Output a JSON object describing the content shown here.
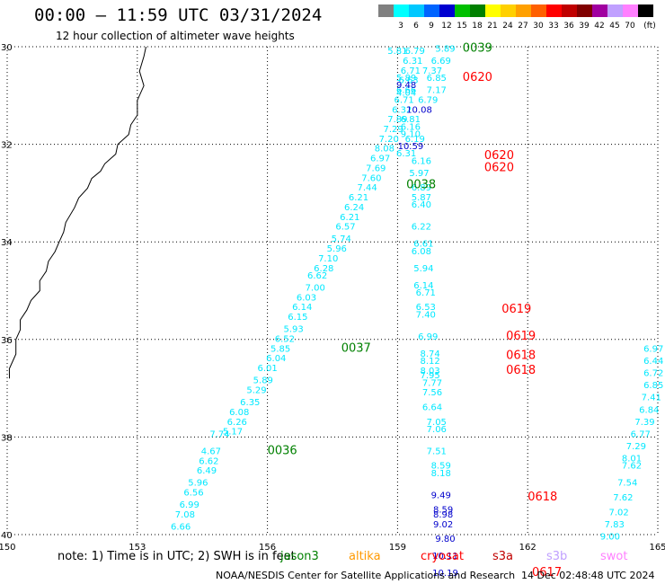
{
  "header": {
    "title": "00:00 – 11:59 UTC 03/31/2024",
    "subtitle": "12 hour collection of altimeter wave heights"
  },
  "legend": {
    "unit": "(ft)",
    "items": [
      {
        "label": "",
        "color": "#808080"
      },
      {
        "label": "3",
        "color": "#00ffff"
      },
      {
        "label": "6",
        "color": "#00c8ff"
      },
      {
        "label": "9",
        "color": "#0064ff"
      },
      {
        "label": "12",
        "color": "#0000d0"
      },
      {
        "label": "15",
        "color": "#00c000"
      },
      {
        "label": "18",
        "color": "#008000"
      },
      {
        "label": "21",
        "color": "#ffff00"
      },
      {
        "label": "24",
        "color": "#ffd000"
      },
      {
        "label": "27",
        "color": "#ffa000"
      },
      {
        "label": "30",
        "color": "#ff6000"
      },
      {
        "label": "33",
        "color": "#ff0000"
      },
      {
        "label": "36",
        "color": "#c00000"
      },
      {
        "label": "39",
        "color": "#800000"
      },
      {
        "label": "42",
        "color": "#a000a0"
      },
      {
        "label": "45",
        "color": "#c0a0ff"
      },
      {
        "label": "70",
        "color": "#ff80ff"
      },
      {
        "label": "",
        "color": "#000000"
      }
    ]
  },
  "axes": {
    "x_ticks": [
      "150",
      "153",
      "156",
      "159",
      "162",
      "165"
    ],
    "y_ticks": [
      "30",
      "32",
      "34",
      "36",
      "38",
      "40"
    ]
  },
  "map_view": {
    "lon_range": [
      150,
      165
    ],
    "lat_range": [
      30,
      40
    ],
    "projection": "equirectangular, latitude increasing downward"
  },
  "colors": {
    "cyan": "#00e8ff",
    "blue": "#0000cc",
    "red": "#ff0000",
    "green": "#008000"
  },
  "tracks": [
    {
      "label": "0036",
      "label_pos": {
        "lon": 156.0,
        "lat": 38.35
      },
      "label_color": "green",
      "points": [
        {
          "lon": 154.0,
          "lat": 39.9,
          "v": "6.66",
          "c": "cyan"
        },
        {
          "lon": 154.1,
          "lat": 39.65,
          "v": "7.08",
          "c": "cyan"
        },
        {
          "lon": 154.2,
          "lat": 39.45,
          "v": "6.99",
          "c": "cyan"
        },
        {
          "lon": 154.3,
          "lat": 39.2,
          "v": "6.56",
          "c": "cyan"
        },
        {
          "lon": 154.4,
          "lat": 39.0,
          "v": "5.96",
          "c": "cyan"
        },
        {
          "lon": 154.6,
          "lat": 38.75,
          "v": "6.49",
          "c": "cyan"
        },
        {
          "lon": 154.65,
          "lat": 38.55,
          "v": "6.62",
          "c": "cyan"
        },
        {
          "lon": 154.7,
          "lat": 38.35,
          "v": "4.67",
          "c": "cyan"
        },
        {
          "lon": 154.9,
          "lat": 38.0,
          "v": "7.74",
          "c": "cyan"
        },
        {
          "lon": 155.2,
          "lat": 37.95,
          "v": "5.17",
          "c": "cyan"
        },
        {
          "lon": 155.3,
          "lat": 37.75,
          "v": "6.26",
          "c": "cyan"
        },
        {
          "lon": 155.35,
          "lat": 37.55,
          "v": "6.08",
          "c": "cyan"
        },
        {
          "lon": 155.6,
          "lat": 37.35,
          "v": "6.35",
          "c": "cyan"
        },
        {
          "lon": 155.75,
          "lat": 37.1,
          "v": "5.29",
          "c": "cyan"
        },
        {
          "lon": 155.9,
          "lat": 36.9,
          "v": "5.89",
          "c": "cyan"
        },
        {
          "lon": 156.0,
          "lat": 36.65,
          "v": "6.01",
          "c": "cyan"
        },
        {
          "lon": 156.2,
          "lat": 36.45,
          "v": "6.04",
          "c": "cyan"
        },
        {
          "lon": 156.3,
          "lat": 36.25,
          "v": "5.85",
          "c": "cyan"
        },
        {
          "lon": 156.4,
          "lat": 36.05,
          "v": "6.52",
          "c": "cyan"
        },
        {
          "lon": 156.6,
          "lat": 35.85,
          "v": "5.93",
          "c": "cyan"
        },
        {
          "lon": 156.7,
          "lat": 35.6,
          "v": "6.15",
          "c": "cyan"
        },
        {
          "lon": 156.8,
          "lat": 35.4,
          "v": "6.14",
          "c": "cyan"
        },
        {
          "lon": 156.9,
          "lat": 35.2,
          "v": "6.03",
          "c": "cyan"
        },
        {
          "lon": 157.1,
          "lat": 35.0,
          "v": "7.00",
          "c": "cyan"
        },
        {
          "lon": 157.15,
          "lat": 34.75,
          "v": "6.62",
          "c": "cyan"
        },
        {
          "lon": 157.3,
          "lat": 34.6,
          "v": "6.28",
          "c": "cyan"
        },
        {
          "lon": 157.4,
          "lat": 34.4,
          "v": "7.10",
          "c": "cyan"
        },
        {
          "lon": 157.6,
          "lat": 34.2,
          "v": "5.96",
          "c": "cyan"
        },
        {
          "lon": 157.7,
          "lat": 34.0,
          "v": "5.74",
          "c": "cyan"
        },
        {
          "lon": 157.8,
          "lat": 33.75,
          "v": "6.57",
          "c": "cyan"
        },
        {
          "lon": 157.9,
          "lat": 33.55,
          "v": "6.21",
          "c": "cyan"
        },
        {
          "lon": 158.0,
          "lat": 33.35,
          "v": "6.24",
          "c": "cyan"
        },
        {
          "lon": 158.1,
          "lat": 33.15,
          "v": "6.21",
          "c": "cyan"
        },
        {
          "lon": 158.3,
          "lat": 32.95,
          "v": "7.44",
          "c": "cyan"
        },
        {
          "lon": 158.4,
          "lat": 32.75,
          "v": "7.60",
          "c": "cyan"
        },
        {
          "lon": 158.5,
          "lat": 32.55,
          "v": "7.69",
          "c": "cyan"
        },
        {
          "lon": 158.6,
          "lat": 32.35,
          "v": "6.97",
          "c": "cyan"
        },
        {
          "lon": 158.7,
          "lat": 32.15,
          "v": "8.08",
          "c": "cyan"
        },
        {
          "lon": 158.8,
          "lat": 31.95,
          "v": "7.20",
          "c": "cyan"
        },
        {
          "lon": 158.9,
          "lat": 31.75,
          "v": "7.29",
          "c": "cyan"
        },
        {
          "lon": 159.0,
          "lat": 31.55,
          "v": "7.89",
          "c": "cyan"
        },
        {
          "lon": 159.1,
          "lat": 31.35,
          "v": "6.32",
          "c": "cyan"
        },
        {
          "lon": 159.15,
          "lat": 31.15,
          "v": "6.71",
          "c": "cyan"
        },
        {
          "lon": 159.2,
          "lat": 30.95,
          "v": "6.66",
          "c": "cyan"
        },
        {
          "lon": 159.25,
          "lat": 30.75,
          "v": "6.63",
          "c": "cyan"
        },
        {
          "lon": 159.3,
          "lat": 30.55,
          "v": "6.71",
          "c": "cyan"
        },
        {
          "lon": 159.35,
          "lat": 30.35,
          "v": "6.31",
          "c": "cyan"
        },
        {
          "lon": 159.4,
          "lat": 30.15,
          "v": "6.79",
          "c": "cyan"
        }
      ]
    },
    {
      "label": "0037",
      "label_pos": {
        "lon": 157.7,
        "lat": 36.25
      },
      "label_color": "green",
      "points": []
    },
    {
      "label": "0038",
      "label_pos": {
        "lon": 159.2,
        "lat": 32.9
      },
      "label_color": "green",
      "points": [
        {
          "lon": 159.55,
          "lat": 32.4,
          "v": "6.16",
          "c": "cyan"
        },
        {
          "lon": 159.5,
          "lat": 32.65,
          "v": "5.97",
          "c": "cyan"
        },
        {
          "lon": 159.55,
          "lat": 32.95,
          "v": "6.89",
          "c": "cyan"
        },
        {
          "lon": 159.55,
          "lat": 33.15,
          "v": "5.87",
          "c": "cyan"
        },
        {
          "lon": 159.55,
          "lat": 33.3,
          "v": "6.40",
          "c": "cyan"
        }
      ]
    },
    {
      "label": "0039",
      "label_pos": {
        "lon": 160.5,
        "lat": 30.1
      },
      "label_color": "green",
      "points": [
        {
          "lon": 160.1,
          "lat": 30.1,
          "v": "5.89",
          "c": "cyan"
        },
        {
          "lon": 159.0,
          "lat": 30.15,
          "v": "5.81",
          "c": "cyan"
        },
        {
          "lon": 160.0,
          "lat": 30.35,
          "v": "6.69",
          "c": "cyan"
        },
        {
          "lon": 159.8,
          "lat": 30.55,
          "v": "7.37",
          "c": "cyan"
        },
        {
          "lon": 159.2,
          "lat": 30.7,
          "v": "5.89",
          "c": "cyan"
        },
        {
          "lon": 159.9,
          "lat": 30.7,
          "v": "6.85",
          "c": "cyan"
        },
        {
          "lon": 159.2,
          "lat": 30.85,
          "v": "9.48",
          "c": "blue"
        },
        {
          "lon": 159.9,
          "lat": 30.95,
          "v": "7.17",
          "c": "cyan"
        },
        {
          "lon": 159.2,
          "lat": 31.0,
          "v": "4.04",
          "c": "cyan"
        },
        {
          "lon": 159.7,
          "lat": 31.15,
          "v": "6.79",
          "c": "cyan"
        },
        {
          "lon": 159.5,
          "lat": 31.35,
          "v": "10.08",
          "c": "blue"
        },
        {
          "lon": 159.3,
          "lat": 31.55,
          "v": "6.81",
          "c": "cyan"
        },
        {
          "lon": 159.3,
          "lat": 31.7,
          "v": "6.16",
          "c": "cyan"
        },
        {
          "lon": 159.3,
          "lat": 31.85,
          "v": "9.10",
          "c": "cyan"
        },
        {
          "lon": 159.4,
          "lat": 31.95,
          "v": "6.19",
          "c": "cyan"
        },
        {
          "lon": 159.3,
          "lat": 32.1,
          "v": "10.59",
          "c": "blue"
        },
        {
          "lon": 159.2,
          "lat": 32.25,
          "v": "6.31",
          "c": "cyan"
        }
      ]
    },
    {
      "label": "0620",
      "label_pos": {
        "lon": 160.5,
        "lat": 30.7
      },
      "label_color": "red",
      "points": []
    },
    {
      "label": "0620",
      "label_pos": {
        "lon": 161.0,
        "lat": 32.3
      },
      "label_color": "red",
      "points": []
    },
    {
      "label": "0620",
      "label_pos": {
        "lon": 161.0,
        "lat": 32.55
      },
      "label_color": "red",
      "points": [
        {
          "lon": 159.55,
          "lat": 33.75,
          "v": "6.22",
          "c": "cyan"
        },
        {
          "lon": 159.6,
          "lat": 34.1,
          "v": "6.61",
          "c": "cyan"
        },
        {
          "lon": 159.55,
          "lat": 34.25,
          "v": "6.08",
          "c": "cyan"
        },
        {
          "lon": 159.6,
          "lat": 34.6,
          "v": "5.94",
          "c": "cyan"
        },
        {
          "lon": 159.6,
          "lat": 34.95,
          "v": "6.14",
          "c": "cyan"
        },
        {
          "lon": 159.65,
          "lat": 35.1,
          "v": "6.71",
          "c": "cyan"
        },
        {
          "lon": 159.65,
          "lat": 35.4,
          "v": "6.53",
          "c": "cyan"
        },
        {
          "lon": 159.65,
          "lat": 35.55,
          "v": "7.40",
          "c": "cyan"
        }
      ]
    },
    {
      "label": "0619",
      "label_pos": {
        "lon": 161.4,
        "lat": 35.45
      },
      "label_color": "red",
      "points": []
    },
    {
      "label": "0619",
      "label_pos": {
        "lon": 161.5,
        "lat": 36.0
      },
      "label_color": "red",
      "points": [
        {
          "lon": 159.7,
          "lat": 36.0,
          "v": "6.99",
          "c": "cyan"
        },
        {
          "lon": 159.75,
          "lat": 36.35,
          "v": "8.74",
          "c": "cyan"
        },
        {
          "lon": 159.75,
          "lat": 36.5,
          "v": "8.12",
          "c": "cyan"
        },
        {
          "lon": 159.75,
          "lat": 36.7,
          "v": "8.03",
          "c": "cyan"
        },
        {
          "lon": 159.75,
          "lat": 36.8,
          "v": "7.95",
          "c": "cyan"
        },
        {
          "lon": 159.8,
          "lat": 36.95,
          "v": "7.77",
          "c": "cyan"
        },
        {
          "lon": 159.8,
          "lat": 37.15,
          "v": "7.56",
          "c": "cyan"
        },
        {
          "lon": 159.8,
          "lat": 37.45,
          "v": "6.64",
          "c": "cyan"
        },
        {
          "lon": 159.9,
          "lat": 37.75,
          "v": "7.05",
          "c": "cyan"
        },
        {
          "lon": 159.9,
          "lat": 37.9,
          "v": "7.06",
          "c": "cyan"
        },
        {
          "lon": 159.9,
          "lat": 38.35,
          "v": "7.51",
          "c": "cyan"
        },
        {
          "lon": 160.0,
          "lat": 38.65,
          "v": "8.59",
          "c": "cyan"
        },
        {
          "lon": 160.0,
          "lat": 38.8,
          "v": "8.18",
          "c": "cyan"
        }
      ]
    },
    {
      "label": "0618",
      "label_pos": {
        "lon": 161.5,
        "lat": 36.4
      },
      "label_color": "red",
      "points": []
    },
    {
      "label": "0618",
      "label_pos": {
        "lon": 161.5,
        "lat": 36.7
      },
      "label_color": "red",
      "points": []
    },
    {
      "label": "0618",
      "label_pos": {
        "lon": 162.0,
        "lat": 39.3
      },
      "label_color": "red",
      "points": [
        {
          "lon": 160.0,
          "lat": 39.25,
          "v": "9.49",
          "c": "blue"
        },
        {
          "lon": 160.05,
          "lat": 39.55,
          "v": "8.59",
          "c": "blue"
        },
        {
          "lon": 160.05,
          "lat": 39.65,
          "v": "8.98",
          "c": "blue"
        },
        {
          "lon": 160.05,
          "lat": 39.85,
          "v": "9.02",
          "c": "blue"
        },
        {
          "lon": 160.1,
          "lat": 40.15,
          "v": "9.80",
          "c": "blue"
        },
        {
          "lon": 160.1,
          "lat": 40.5,
          "v": "10.11",
          "c": "blue"
        },
        {
          "lon": 160.1,
          "lat": 40.85,
          "v": "10.19",
          "c": "blue"
        }
      ]
    },
    {
      "label": "0617",
      "label_pos": {
        "lon": 162.1,
        "lat": 40.85
      },
      "label_color": "red",
      "points": [
        {
          "lon": 164.9,
          "lat": 36.25,
          "v": "6.97",
          "c": "cyan"
        },
        {
          "lon": 164.9,
          "lat": 36.5,
          "v": "6.44",
          "c": "cyan"
        },
        {
          "lon": 164.9,
          "lat": 36.75,
          "v": "6.72",
          "c": "cyan"
        },
        {
          "lon": 164.9,
          "lat": 37.0,
          "v": "6.85",
          "c": "cyan"
        },
        {
          "lon": 164.85,
          "lat": 37.25,
          "v": "7.41",
          "c": "cyan"
        },
        {
          "lon": 164.8,
          "lat": 37.5,
          "v": "6.84",
          "c": "cyan"
        },
        {
          "lon": 164.7,
          "lat": 37.75,
          "v": "7.39",
          "c": "cyan"
        },
        {
          "lon": 164.6,
          "lat": 38.0,
          "v": "6.77",
          "c": "cyan"
        },
        {
          "lon": 164.5,
          "lat": 38.25,
          "v": "7.29",
          "c": "cyan"
        },
        {
          "lon": 164.4,
          "lat": 38.5,
          "v": "8.01",
          "c": "cyan"
        },
        {
          "lon": 164.4,
          "lat": 38.65,
          "v": "7.62",
          "c": "cyan"
        },
        {
          "lon": 164.3,
          "lat": 39.0,
          "v": "7.54",
          "c": "cyan"
        },
        {
          "lon": 164.2,
          "lat": 39.3,
          "v": "7.62",
          "c": "cyan"
        },
        {
          "lon": 164.1,
          "lat": 39.6,
          "v": "7.02",
          "c": "cyan"
        },
        {
          "lon": 164.0,
          "lat": 39.85,
          "v": "7.83",
          "c": "cyan"
        },
        {
          "lon": 163.9,
          "lat": 40.1,
          "v": "9.00",
          "c": "cyan"
        }
      ]
    }
  ],
  "coastline": [
    [
      153.2,
      30.0
    ],
    [
      153.1,
      30.2
    ],
    [
      153.05,
      30.5
    ],
    [
      153.1,
      30.8
    ],
    [
      153.0,
      31.1
    ],
    [
      152.95,
      31.4
    ],
    [
      152.85,
      31.6
    ],
    [
      152.75,
      31.8
    ],
    [
      152.55,
      32.0
    ],
    [
      152.45,
      32.2
    ],
    [
      152.25,
      32.4
    ],
    [
      152.1,
      32.55
    ],
    [
      151.95,
      32.7
    ],
    [
      151.8,
      32.9
    ],
    [
      151.65,
      33.1
    ],
    [
      151.5,
      33.3
    ],
    [
      151.35,
      33.6
    ],
    [
      151.25,
      33.8
    ],
    [
      151.2,
      34.0
    ],
    [
      151.05,
      34.2
    ],
    [
      150.95,
      34.4
    ],
    [
      150.85,
      34.6
    ],
    [
      150.75,
      34.8
    ],
    [
      150.7,
      35.0
    ],
    [
      150.55,
      35.2
    ],
    [
      150.4,
      35.4
    ],
    [
      150.3,
      35.6
    ],
    [
      150.25,
      35.8
    ],
    [
      150.2,
      36.0
    ],
    [
      150.15,
      36.3
    ],
    [
      150.05,
      36.6
    ],
    [
      150.0,
      36.8
    ]
  ],
  "footer": {
    "note": "note:  1) Time is in UTC;  2) SWH is in feet",
    "satellites": [
      {
        "name": "jason3",
        "color": "#008000"
      },
      {
        "name": "altika",
        "color": "#ff9900"
      },
      {
        "name": "cryosat",
        "color": "#ff0000"
      },
      {
        "name": "s3a",
        "color": "#c00000"
      },
      {
        "name": "s3b",
        "color": "#c0a0ff"
      },
      {
        "name": "swot",
        "color": "#ff80ff"
      }
    ],
    "credit": "NOAA/NESDIS Center for Satellite Applications and Research",
    "timestamp": "14 Dec 02:48:48 UTC 2024"
  }
}
